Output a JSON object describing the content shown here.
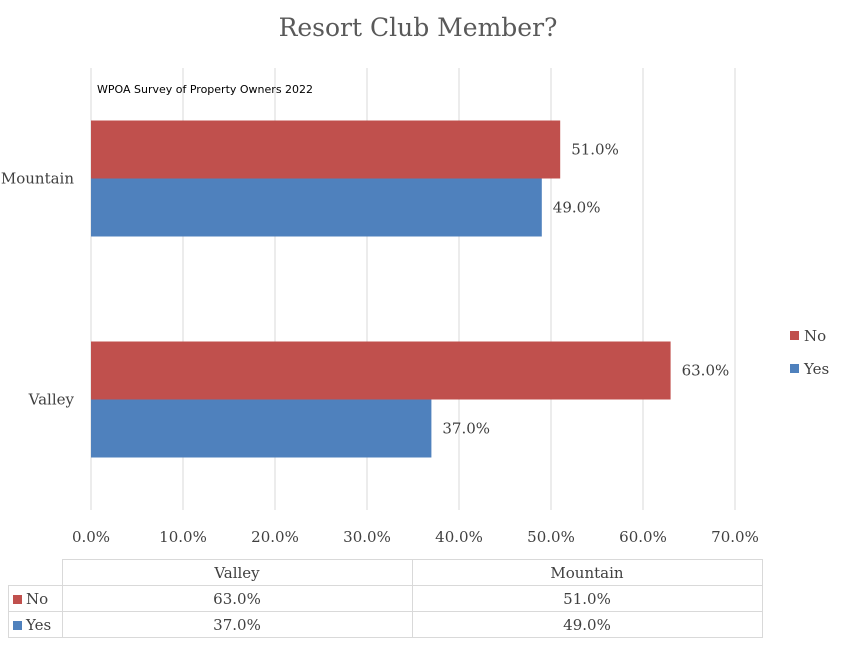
{
  "chart_data": {
    "type": "bar",
    "orientation": "horizontal",
    "title": "Resort Club Member?",
    "annotation": "WPOA Survey of Property Owners 2022",
    "categories": [
      "Mountain",
      "Valley"
    ],
    "series": [
      {
        "name": "No",
        "values": [
          51.0,
          63.0
        ],
        "labels": [
          "51.0%",
          "63.0%"
        ],
        "color": "#c0504d"
      },
      {
        "name": "Yes",
        "values": [
          49.0,
          37.0
        ],
        "labels": [
          "49.0%",
          "37.0%"
        ],
        "color": "#4f81bd"
      }
    ],
    "xlim": [
      0,
      70
    ],
    "x_ticks": [
      "0.0%",
      "10.0%",
      "20.0%",
      "30.0%",
      "40.0%",
      "50.0%",
      "60.0%",
      "70.0%"
    ],
    "grid": true,
    "legend_position": "right",
    "data_table": {
      "columns": [
        "Valley",
        "Mountain"
      ],
      "rows": [
        {
          "name": "No",
          "values": [
            "63.0%",
            "51.0%"
          ]
        },
        {
          "name": "Yes",
          "values": [
            "37.0%",
            "49.0%"
          ]
        }
      ]
    }
  }
}
